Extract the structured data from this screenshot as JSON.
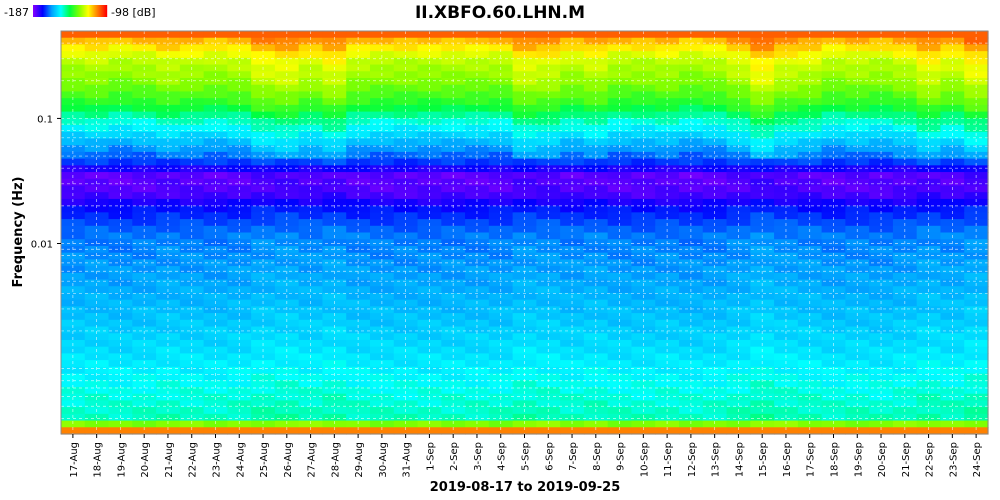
{
  "chart_data": {
    "type": "heatmap",
    "title": "II.XBFO.60.LHN.M",
    "xlabel": "2019-08-17 to 2019-09-25",
    "ylabel": "Frequency (Hz)",
    "yscale": "log",
    "ylim": [
      0.0003,
      0.5
    ],
    "y_ticks": [
      {
        "value": 0.1,
        "label": "0.1"
      },
      {
        "value": 0.01,
        "label": "0.01"
      }
    ],
    "grid": true,
    "colorbar": {
      "min_label": "-187",
      "max_label": "-98 [dB]",
      "min": -187,
      "max": -98,
      "colormap": [
        "#8000ff",
        "#0000ff",
        "#00a0ff",
        "#00ffff",
        "#00ff40",
        "#80ff00",
        "#ffff00",
        "#ff8000",
        "#ff0000"
      ]
    },
    "x_categories": [
      "17-Aug",
      "18-Aug",
      "19-Aug",
      "20-Aug",
      "21-Aug",
      "22-Aug",
      "23-Aug",
      "24-Aug",
      "25-Aug",
      "26-Aug",
      "27-Aug",
      "28-Aug",
      "29-Aug",
      "30-Aug",
      "31-Aug",
      "1-Sep",
      "2-Sep",
      "3-Sep",
      "4-Sep",
      "5-Sep",
      "6-Sep",
      "7-Sep",
      "8-Sep",
      "9-Sep",
      "10-Sep",
      "11-Sep",
      "12-Sep",
      "13-Sep",
      "14-Sep",
      "15-Sep",
      "16-Sep",
      "17-Sep",
      "18-Sep",
      "19-Sep",
      "20-Sep",
      "21-Sep",
      "22-Sep",
      "23-Sep",
      "24-Sep"
    ],
    "frequency_profile_db": [
      {
        "f": 0.5,
        "db": -98
      },
      {
        "f": 0.45,
        "db": -112
      },
      {
        "f": 0.3,
        "db": -126
      },
      {
        "f": 0.2,
        "db": -131
      },
      {
        "f": 0.13,
        "db": -140
      },
      {
        "f": 0.1,
        "db": -150
      },
      {
        "f": 0.07,
        "db": -160
      },
      {
        "f": 0.045,
        "db": -172
      },
      {
        "f": 0.035,
        "db": -184
      },
      {
        "f": 0.025,
        "db": -183
      },
      {
        "f": 0.02,
        "db": -176
      },
      {
        "f": 0.012,
        "db": -168
      },
      {
        "f": 0.004,
        "db": -163
      },
      {
        "f": 0.0015,
        "db": -158
      },
      {
        "f": 0.0007,
        "db": -153
      },
      {
        "f": 0.0004,
        "db": -150
      },
      {
        "f": 0.0003,
        "db": -98
      }
    ],
    "daily_offset_db": [
      0,
      1,
      -1,
      0,
      2,
      1,
      0,
      1,
      5,
      6,
      3,
      6,
      1,
      0,
      0,
      0,
      0,
      0,
      0,
      5,
      4,
      1,
      3,
      0,
      0,
      1,
      -1,
      0,
      3,
      8,
      4,
      3,
      0,
      1,
      0,
      2,
      6,
      3,
      7
    ]
  }
}
